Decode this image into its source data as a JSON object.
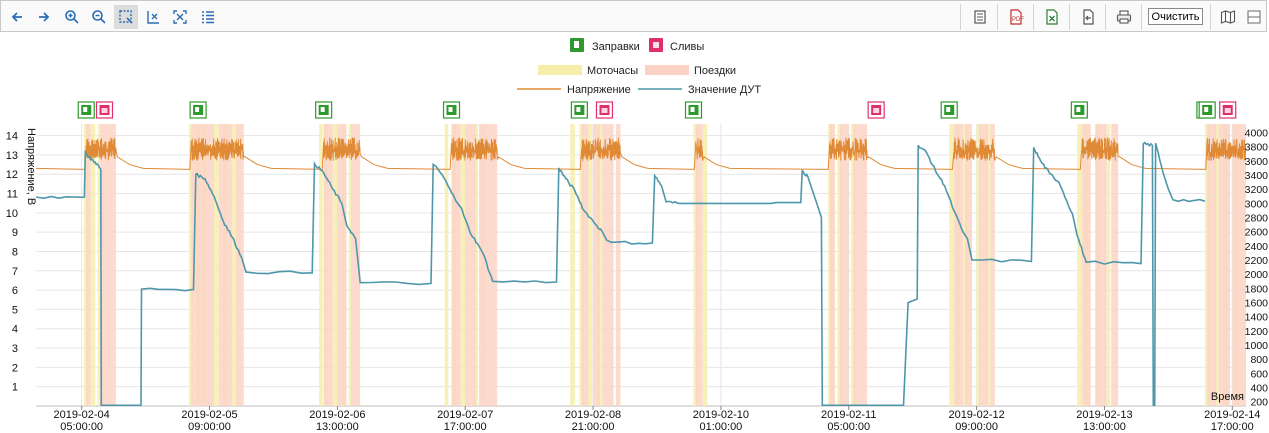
{
  "toolbar": {
    "clear_label": "Очистить",
    "left_icons": [
      "arrow-left-icon",
      "arrow-right-icon",
      "zoom-in-icon",
      "zoom-out-icon",
      "zoom-select-icon",
      "zoom-x-icon",
      "zoom-fit-icon",
      "list-icon"
    ],
    "right_icons": [
      "document-icon",
      "pdf-icon",
      "excel-icon",
      "export-icon",
      "print-icon"
    ],
    "view_icons": [
      "map-icon",
      "table-view-icon"
    ]
  },
  "chart_data": {
    "type": "line",
    "legend": {
      "markers": [
        {
          "name": "Заправки",
          "color": "#2e9a2e",
          "icon": "fuel-pump-icon"
        },
        {
          "name": "Сливы",
          "color": "#e0306a",
          "icon": "fuel-can-icon"
        }
      ],
      "bands": [
        {
          "name": "Моточасы",
          "color": "#f6eeaa"
        },
        {
          "name": "Поездки",
          "color": "#fbd3c5"
        }
      ],
      "lines": [
        {
          "name": "Напряжение",
          "color": "#e08a36"
        },
        {
          "name": "Значение ДУТ",
          "color": "#4e97aa"
        }
      ]
    },
    "ylabel": "Напряжение, В",
    "xlabel": "Время",
    "ylim": [
      0,
      14.6
    ],
    "y_ticks": [
      1,
      2,
      3,
      4,
      5,
      6,
      7,
      8,
      9,
      10,
      11,
      12,
      13,
      14
    ],
    "y2lim": [
      140,
      4120
    ],
    "y2_ticks": [
      200,
      400,
      600,
      800,
      1000,
      1200,
      1400,
      1600,
      1800,
      2000,
      2200,
      2400,
      2600,
      2800,
      3000,
      3200,
      3400,
      3600,
      3800,
      4000
    ],
    "x_range_hours": [
      -10,
      255
    ],
    "x_ticks": [
      {
        "h": 0,
        "date": "2019-02-04",
        "time": "05:00:00"
      },
      {
        "h": 28,
        "date": "2019-02-05",
        "time": "09:00:00"
      },
      {
        "h": 56,
        "date": "2019-02-06",
        "time": "13:00:00"
      },
      {
        "h": 84,
        "date": "2019-02-07",
        "time": "17:00:00"
      },
      {
        "h": 112,
        "date": "2019-02-08",
        "time": "21:00:00"
      },
      {
        "h": 140,
        "date": "2019-02-10",
        "time": "01:00:00"
      },
      {
        "h": 168,
        "date": "2019-02-11",
        "time": "05:00:00"
      },
      {
        "h": 196,
        "date": "2019-02-12",
        "time": "09:00:00"
      },
      {
        "h": 224,
        "date": "2019-02-13",
        "time": "13:00:00"
      },
      {
        "h": 252,
        "date": "2019-02-14",
        "time": "17:00:00"
      }
    ],
    "refuel_hours": [
      1,
      25.5,
      53,
      81,
      109,
      134,
      190,
      218.5,
      246,
      246.5
    ],
    "drain_hours": [
      5,
      114.5,
      174,
      251
    ],
    "motor_bands": [
      [
        0.5,
        1.5
      ],
      [
        2,
        3
      ],
      [
        3.5,
        4
      ],
      [
        23.5,
        24.5
      ],
      [
        25,
        26
      ],
      [
        26.5,
        27.5
      ],
      [
        29,
        30
      ],
      [
        31,
        31.8
      ],
      [
        33,
        34
      ],
      [
        52,
        52.8
      ],
      [
        53,
        54
      ],
      [
        55,
        56
      ],
      [
        57,
        57.7
      ],
      [
        58.5,
        59.2
      ],
      [
        79.5,
        80.3
      ],
      [
        81,
        82
      ],
      [
        83,
        84
      ],
      [
        86,
        86.8
      ],
      [
        87.5,
        88.2
      ],
      [
        107,
        108
      ],
      [
        109,
        110
      ],
      [
        111,
        111.8
      ],
      [
        113,
        114
      ],
      [
        134,
        135
      ],
      [
        136,
        137
      ],
      [
        163.5,
        164.5
      ],
      [
        165.5,
        166.5
      ],
      [
        168.5,
        169.5
      ],
      [
        190,
        191
      ],
      [
        191.5,
        192.3
      ],
      [
        193,
        194
      ],
      [
        196,
        196.8
      ],
      [
        198,
        199
      ],
      [
        218,
        219
      ],
      [
        219.5,
        220.5
      ],
      [
        222,
        223
      ],
      [
        224.5,
        225.3
      ],
      [
        246,
        247
      ],
      [
        248,
        249
      ],
      [
        250,
        251
      ],
      [
        252.5,
        253.5
      ]
    ],
    "trip_bands": [
      [
        1,
        2
      ],
      [
        4,
        7.5
      ],
      [
        24,
        29
      ],
      [
        30,
        33
      ],
      [
        33.8,
        35.5
      ],
      [
        53,
        55
      ],
      [
        56,
        58
      ],
      [
        59,
        61
      ],
      [
        81,
        83
      ],
      [
        84,
        86.3
      ],
      [
        87,
        91
      ],
      [
        109.5,
        111
      ],
      [
        112,
        113.5
      ],
      [
        114,
        116.5
      ],
      [
        117,
        118
      ],
      [
        134.5,
        136
      ],
      [
        163.8,
        165
      ],
      [
        166,
        168
      ],
      [
        169,
        172
      ],
      [
        191,
        193
      ],
      [
        193.5,
        195
      ],
      [
        196.5,
        198.5
      ],
      [
        199,
        200
      ],
      [
        219,
        221
      ],
      [
        222,
        224.5
      ],
      [
        225.5,
        227
      ],
      [
        246.5,
        248.5
      ],
      [
        249,
        251.5
      ],
      [
        252,
        255
      ]
    ],
    "voltage_series": {
      "name": "Напряжение",
      "baseline_v": 12.3,
      "trips": [
        [
          1,
          7.5,
          13.9
        ],
        [
          24,
          35.5,
          13.9
        ],
        [
          53,
          61,
          13.9
        ],
        [
          81,
          91,
          13.9
        ],
        [
          109.5,
          118,
          13.9
        ],
        [
          134.5,
          136,
          13.9
        ],
        [
          163.8,
          172,
          13.9
        ],
        [
          191,
          200,
          13.9
        ],
        [
          219,
          227,
          13.9
        ],
        [
          246.5,
          255,
          13.9
        ]
      ]
    },
    "fuel_series": {
      "name": "Значение ДУТ",
      "points": [
        [
          -10,
          3090
        ],
        [
          0,
          3085
        ],
        [
          0.6,
          3090
        ],
        [
          0.8,
          3720
        ],
        [
          1.5,
          3650
        ],
        [
          3,
          3580
        ],
        [
          4.2,
          3480
        ],
        [
          4.3,
          150
        ],
        [
          13,
          150
        ],
        [
          13.1,
          1790
        ],
        [
          24.5,
          1785
        ],
        [
          25,
          3410
        ],
        [
          27,
          3350
        ],
        [
          29,
          3100
        ],
        [
          31,
          2750
        ],
        [
          33,
          2520
        ],
        [
          35,
          2240
        ],
        [
          36,
          2030
        ],
        [
          50.5,
          2020
        ],
        [
          51,
          3560
        ],
        [
          53,
          3430
        ],
        [
          55,
          3200
        ],
        [
          57,
          3000
        ],
        [
          58,
          2700
        ],
        [
          60,
          2500
        ],
        [
          61,
          1880
        ],
        [
          76.5,
          1870
        ],
        [
          77,
          3550
        ],
        [
          79,
          3400
        ],
        [
          81,
          3150
        ],
        [
          83,
          2950
        ],
        [
          85,
          2600
        ],
        [
          87,
          2400
        ],
        [
          88,
          2280
        ],
        [
          90,
          1900
        ],
        [
          104,
          1890
        ],
        [
          104.5,
          3500
        ],
        [
          106,
          3350
        ],
        [
          108,
          3180
        ],
        [
          110,
          2900
        ],
        [
          112,
          2750
        ],
        [
          114,
          2600
        ],
        [
          115,
          2480
        ],
        [
          116,
          2450
        ],
        [
          125,
          2440
        ],
        [
          125.5,
          3390
        ],
        [
          127,
          3250
        ],
        [
          128,
          3020
        ],
        [
          131,
          3000
        ],
        [
          151,
          3000
        ],
        [
          152,
          3010
        ],
        [
          157.5,
          3010
        ],
        [
          157.8,
          3460
        ],
        [
          159,
          3380
        ],
        [
          160,
          3190
        ],
        [
          161,
          3000
        ],
        [
          162,
          2800
        ],
        [
          162.2,
          150
        ],
        [
          180,
          150
        ],
        [
          181,
          1600
        ],
        [
          183,
          1650
        ],
        [
          183.2,
          3820
        ],
        [
          185,
          3720
        ],
        [
          187,
          3460
        ],
        [
          189,
          3250
        ],
        [
          191,
          2900
        ],
        [
          193,
          2600
        ],
        [
          194,
          2500
        ],
        [
          195,
          2200
        ],
        [
          208,
          2180
        ],
        [
          208.5,
          3790
        ],
        [
          210,
          3600
        ],
        [
          212,
          3420
        ],
        [
          214,
          3300
        ],
        [
          215,
          3150
        ],
        [
          217,
          2850
        ],
        [
          218,
          2550
        ],
        [
          220,
          2170
        ],
        [
          232,
          2150
        ],
        [
          232.5,
          3840
        ],
        [
          234.5,
          3820
        ],
        [
          234.7,
          150
        ],
        [
          235,
          150
        ],
        [
          235.2,
          3850
        ],
        [
          237,
          3400
        ],
        [
          238,
          3200
        ],
        [
          239,
          3050
        ],
        [
          246,
          3030
        ]
      ]
    }
  }
}
